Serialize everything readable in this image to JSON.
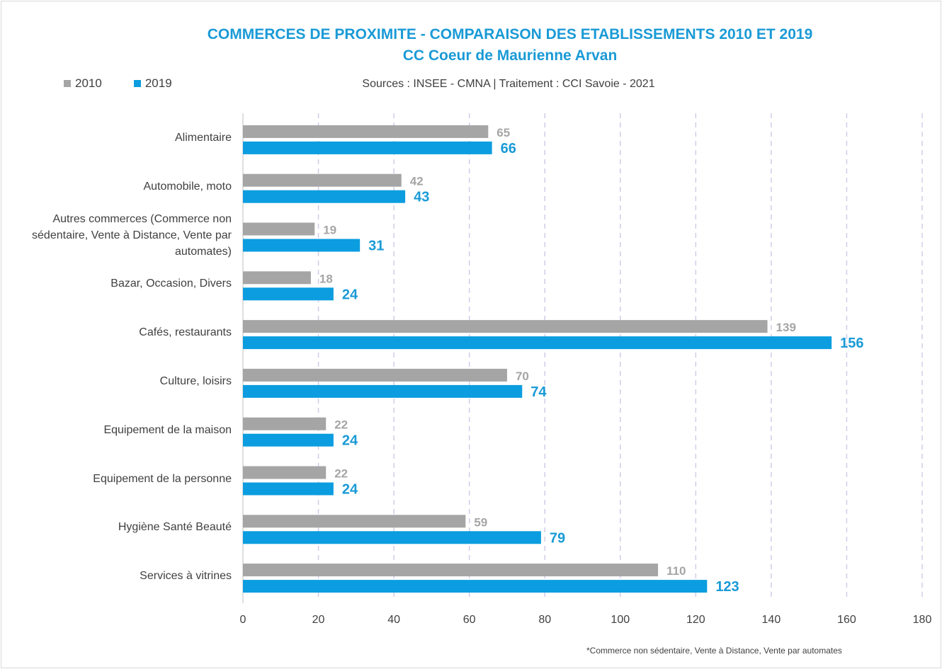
{
  "chart_data": {
    "type": "bar",
    "orientation": "horizontal",
    "title": "COMMERCES DE PROXIMITE - COMPARAISON DES ETABLISSEMENTS 2010 ET 2019",
    "subtitle": "CC Coeur de Maurienne Arvan",
    "sources": "Sources : INSEE - CMNA  |  Traitement : CCI Savoie - 2021",
    "footnote": "*Commerce non sédentaire, Vente à Distance, Vente par automates",
    "categories": [
      "Alimentaire",
      "Automobile, moto",
      "Autres commerces (Commerce non sédentaire, Vente à Distance, Vente par automates)",
      "Bazar, Occasion, Divers",
      "Cafés, restaurants",
      "Culture, loisirs",
      "Equipement de la maison",
      "Equipement de la personne",
      "Hygiène Santé Beauté",
      "Services à vitrines"
    ],
    "series": [
      {
        "name": "2010",
        "color": "#a5a5a5",
        "values": [
          65,
          42,
          19,
          18,
          139,
          70,
          22,
          22,
          59,
          110
        ]
      },
      {
        "name": "2019",
        "color": "#0b9ddf",
        "values": [
          66,
          43,
          31,
          24,
          156,
          74,
          24,
          24,
          79,
          123
        ]
      }
    ],
    "xlim": [
      0,
      180
    ],
    "xticks": [
      0,
      20,
      40,
      60,
      80,
      100,
      120,
      140,
      160,
      180
    ],
    "grid": true,
    "legend_position": "top-left"
  }
}
